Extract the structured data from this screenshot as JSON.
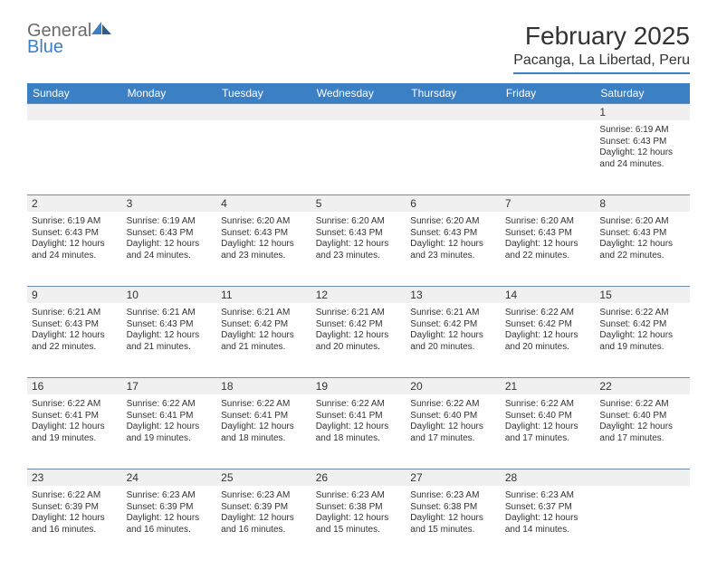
{
  "brand": {
    "word1": "General",
    "word2": "Blue",
    "text_color_gray": "#6b6b6b",
    "text_color_blue": "#3b7fc4"
  },
  "title": "February 2025",
  "location": "Pacanga, La Libertad, Peru",
  "header_bg": "#3b7fc4",
  "header_text_color": "#ffffff",
  "daynum_bg": "#f0f0f0",
  "divider_color": "#6b8bb0",
  "columns": [
    "Sunday",
    "Monday",
    "Tuesday",
    "Wednesday",
    "Thursday",
    "Friday",
    "Saturday"
  ],
  "weeks": [
    [
      {
        "n": "",
        "sr": "",
        "ss": "",
        "dl": ""
      },
      {
        "n": "",
        "sr": "",
        "ss": "",
        "dl": ""
      },
      {
        "n": "",
        "sr": "",
        "ss": "",
        "dl": ""
      },
      {
        "n": "",
        "sr": "",
        "ss": "",
        "dl": ""
      },
      {
        "n": "",
        "sr": "",
        "ss": "",
        "dl": ""
      },
      {
        "n": "",
        "sr": "",
        "ss": "",
        "dl": ""
      },
      {
        "n": "1",
        "sr": "Sunrise: 6:19 AM",
        "ss": "Sunset: 6:43 PM",
        "dl": "Daylight: 12 hours and 24 minutes."
      }
    ],
    [
      {
        "n": "2",
        "sr": "Sunrise: 6:19 AM",
        "ss": "Sunset: 6:43 PM",
        "dl": "Daylight: 12 hours and 24 minutes."
      },
      {
        "n": "3",
        "sr": "Sunrise: 6:19 AM",
        "ss": "Sunset: 6:43 PM",
        "dl": "Daylight: 12 hours and 24 minutes."
      },
      {
        "n": "4",
        "sr": "Sunrise: 6:20 AM",
        "ss": "Sunset: 6:43 PM",
        "dl": "Daylight: 12 hours and 23 minutes."
      },
      {
        "n": "5",
        "sr": "Sunrise: 6:20 AM",
        "ss": "Sunset: 6:43 PM",
        "dl": "Daylight: 12 hours and 23 minutes."
      },
      {
        "n": "6",
        "sr": "Sunrise: 6:20 AM",
        "ss": "Sunset: 6:43 PM",
        "dl": "Daylight: 12 hours and 23 minutes."
      },
      {
        "n": "7",
        "sr": "Sunrise: 6:20 AM",
        "ss": "Sunset: 6:43 PM",
        "dl": "Daylight: 12 hours and 22 minutes."
      },
      {
        "n": "8",
        "sr": "Sunrise: 6:20 AM",
        "ss": "Sunset: 6:43 PM",
        "dl": "Daylight: 12 hours and 22 minutes."
      }
    ],
    [
      {
        "n": "9",
        "sr": "Sunrise: 6:21 AM",
        "ss": "Sunset: 6:43 PM",
        "dl": "Daylight: 12 hours and 22 minutes."
      },
      {
        "n": "10",
        "sr": "Sunrise: 6:21 AM",
        "ss": "Sunset: 6:43 PM",
        "dl": "Daylight: 12 hours and 21 minutes."
      },
      {
        "n": "11",
        "sr": "Sunrise: 6:21 AM",
        "ss": "Sunset: 6:42 PM",
        "dl": "Daylight: 12 hours and 21 minutes."
      },
      {
        "n": "12",
        "sr": "Sunrise: 6:21 AM",
        "ss": "Sunset: 6:42 PM",
        "dl": "Daylight: 12 hours and 20 minutes."
      },
      {
        "n": "13",
        "sr": "Sunrise: 6:21 AM",
        "ss": "Sunset: 6:42 PM",
        "dl": "Daylight: 12 hours and 20 minutes."
      },
      {
        "n": "14",
        "sr": "Sunrise: 6:22 AM",
        "ss": "Sunset: 6:42 PM",
        "dl": "Daylight: 12 hours and 20 minutes."
      },
      {
        "n": "15",
        "sr": "Sunrise: 6:22 AM",
        "ss": "Sunset: 6:42 PM",
        "dl": "Daylight: 12 hours and 19 minutes."
      }
    ],
    [
      {
        "n": "16",
        "sr": "Sunrise: 6:22 AM",
        "ss": "Sunset: 6:41 PM",
        "dl": "Daylight: 12 hours and 19 minutes."
      },
      {
        "n": "17",
        "sr": "Sunrise: 6:22 AM",
        "ss": "Sunset: 6:41 PM",
        "dl": "Daylight: 12 hours and 19 minutes."
      },
      {
        "n": "18",
        "sr": "Sunrise: 6:22 AM",
        "ss": "Sunset: 6:41 PM",
        "dl": "Daylight: 12 hours and 18 minutes."
      },
      {
        "n": "19",
        "sr": "Sunrise: 6:22 AM",
        "ss": "Sunset: 6:41 PM",
        "dl": "Daylight: 12 hours and 18 minutes."
      },
      {
        "n": "20",
        "sr": "Sunrise: 6:22 AM",
        "ss": "Sunset: 6:40 PM",
        "dl": "Daylight: 12 hours and 17 minutes."
      },
      {
        "n": "21",
        "sr": "Sunrise: 6:22 AM",
        "ss": "Sunset: 6:40 PM",
        "dl": "Daylight: 12 hours and 17 minutes."
      },
      {
        "n": "22",
        "sr": "Sunrise: 6:22 AM",
        "ss": "Sunset: 6:40 PM",
        "dl": "Daylight: 12 hours and 17 minutes."
      }
    ],
    [
      {
        "n": "23",
        "sr": "Sunrise: 6:22 AM",
        "ss": "Sunset: 6:39 PM",
        "dl": "Daylight: 12 hours and 16 minutes."
      },
      {
        "n": "24",
        "sr": "Sunrise: 6:23 AM",
        "ss": "Sunset: 6:39 PM",
        "dl": "Daylight: 12 hours and 16 minutes."
      },
      {
        "n": "25",
        "sr": "Sunrise: 6:23 AM",
        "ss": "Sunset: 6:39 PM",
        "dl": "Daylight: 12 hours and 16 minutes."
      },
      {
        "n": "26",
        "sr": "Sunrise: 6:23 AM",
        "ss": "Sunset: 6:38 PM",
        "dl": "Daylight: 12 hours and 15 minutes."
      },
      {
        "n": "27",
        "sr": "Sunrise: 6:23 AM",
        "ss": "Sunset: 6:38 PM",
        "dl": "Daylight: 12 hours and 15 minutes."
      },
      {
        "n": "28",
        "sr": "Sunrise: 6:23 AM",
        "ss": "Sunset: 6:37 PM",
        "dl": "Daylight: 12 hours and 14 minutes."
      },
      {
        "n": "",
        "sr": "",
        "ss": "",
        "dl": ""
      }
    ]
  ]
}
